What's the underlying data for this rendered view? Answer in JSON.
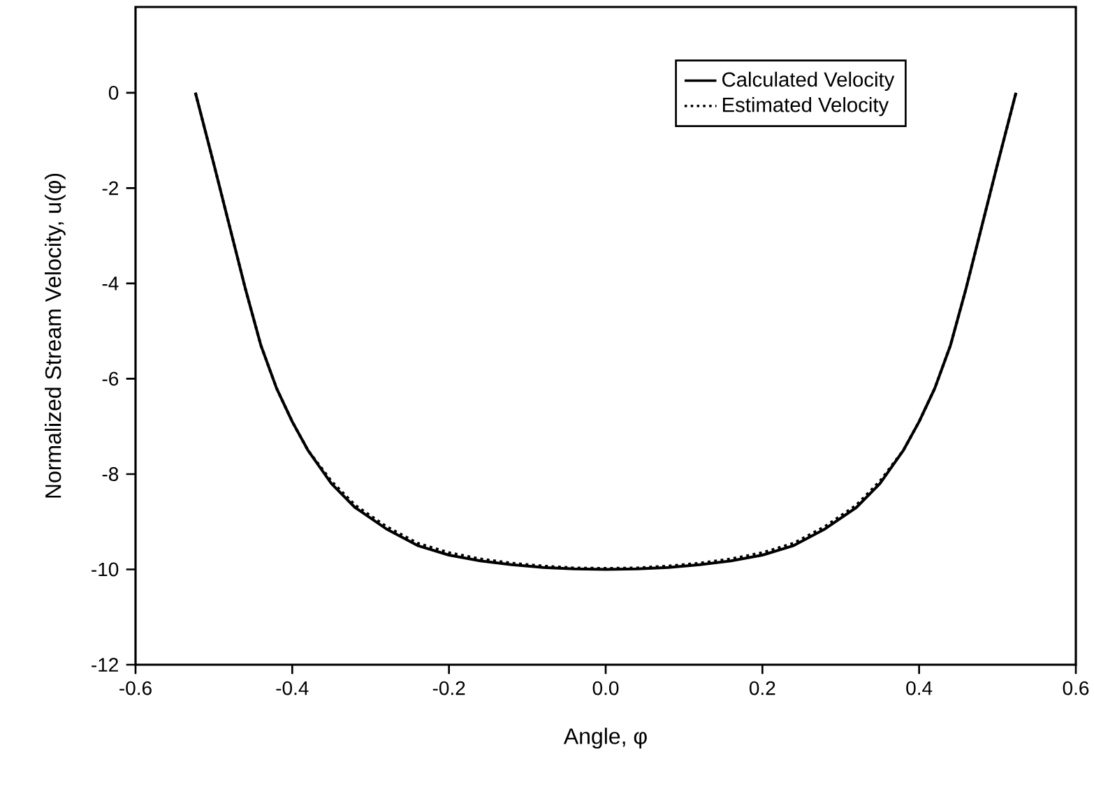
{
  "chart_data": {
    "type": "line",
    "xlabel": "Angle, φ",
    "ylabel": "Normalized Stream Velocity, u(φ)",
    "xlim": [
      -0.6,
      0.6
    ],
    "ylim": [
      -12,
      1.8
    ],
    "xticks": [
      -0.6,
      -0.4,
      -0.2,
      {
        "value": 0,
        "label": "0.0"
      },
      0.2,
      0.4,
      0.6
    ],
    "yticks": [
      -12,
      -10,
      -8,
      -6,
      -4,
      -2,
      0
    ],
    "grid": false,
    "legend": "top right",
    "marker": "none",
    "series": [
      {
        "name": "Calculated Velocity",
        "color": "#000000",
        "line_style": "solid",
        "x": [
          -0.5236,
          -0.5,
          -0.48,
          -0.46,
          -0.44,
          -0.42,
          -0.4,
          -0.38,
          -0.35,
          -0.32,
          -0.28,
          -0.24,
          -0.2,
          -0.16,
          -0.12,
          -0.08,
          -0.04,
          0,
          0.04,
          0.08,
          0.12,
          0.16,
          0.2,
          0.24,
          0.28,
          0.32,
          0.35,
          0.38,
          0.4,
          0.42,
          0.44,
          0.46,
          0.48,
          0.5,
          0.5236
        ],
        "values": [
          0,
          -1.5,
          -2.8,
          -4.1,
          -5.3,
          -6.2,
          -6.9,
          -7.5,
          -8.2,
          -8.7,
          -9.15,
          -9.5,
          -9.7,
          -9.82,
          -9.9,
          -9.96,
          -9.99,
          -10,
          -9.99,
          -9.96,
          -9.9,
          -9.82,
          -9.7,
          -9.5,
          -9.15,
          -8.7,
          -8.2,
          -7.5,
          -6.9,
          -6.2,
          -5.3,
          -4.1,
          -2.8,
          -1.5,
          0
        ]
      },
      {
        "name": "Estimated Velocity",
        "color": "#000000",
        "line_style": "dotted",
        "x": [
          -0.5236,
          -0.5,
          -0.48,
          -0.46,
          -0.44,
          -0.42,
          -0.4,
          -0.38,
          -0.35,
          -0.32,
          -0.28,
          -0.24,
          -0.2,
          -0.16,
          -0.12,
          -0.08,
          -0.04,
          0,
          0.04,
          0.08,
          0.12,
          0.16,
          0.2,
          0.24,
          0.28,
          0.32,
          0.35,
          0.38,
          0.4,
          0.42,
          0.44,
          0.46,
          0.48,
          0.5,
          0.5236
        ],
        "values": [
          0,
          -1.5,
          -2.8,
          -4.1,
          -5.3,
          -6.2,
          -6.9,
          -7.5,
          -8.15,
          -8.65,
          -9.1,
          -9.45,
          -9.65,
          -9.78,
          -9.87,
          -9.93,
          -9.97,
          -9.98,
          -9.97,
          -9.93,
          -9.87,
          -9.78,
          -9.65,
          -9.45,
          -9.1,
          -8.65,
          -8.15,
          -7.5,
          -6.9,
          -6.2,
          -5.3,
          -4.1,
          -2.8,
          -1.5,
          0
        ]
      }
    ]
  }
}
